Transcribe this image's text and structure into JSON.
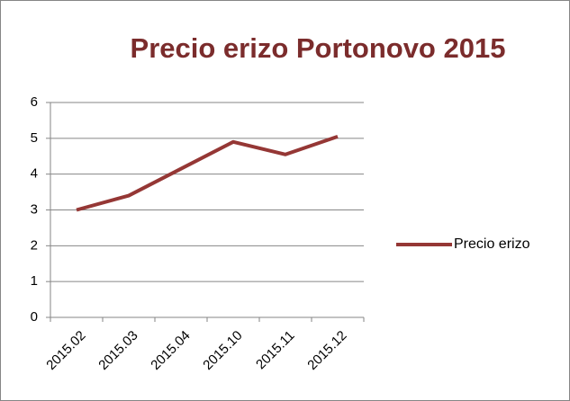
{
  "chart_data": {
    "type": "line",
    "title": "Precio erizo Portonovo 2015",
    "categories": [
      "2015.02",
      "2015.03",
      "2015.04",
      "2015.10",
      "2015.11",
      "2015.12"
    ],
    "series": [
      {
        "name": "Precio erizo",
        "color": "#953735",
        "values": [
          3.0,
          3.4,
          4.15,
          4.9,
          4.55,
          5.05
        ]
      }
    ],
    "ylim": [
      0,
      6
    ],
    "yticks": [
      0,
      1,
      2,
      3,
      4,
      5,
      6
    ],
    "grid": true,
    "legend": "right"
  }
}
